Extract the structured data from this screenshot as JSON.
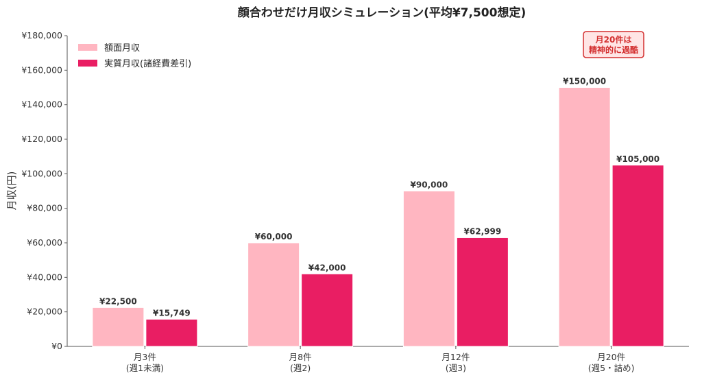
{
  "chart_data": {
    "type": "bar",
    "title": "顔合わせだけ月収シミュレーション(平均¥7,500想定)",
    "ylabel": "月収(円)",
    "xlabel": "",
    "ylim": [
      0,
      180000
    ],
    "yticks": [
      "¥0",
      "¥20,000",
      "¥40,000",
      "¥60,000",
      "¥80,000",
      "¥100,000",
      "¥120,000",
      "¥140,000",
      "¥160,000",
      "¥180,000"
    ],
    "categories": [
      [
        "月3件",
        "(週1未満)"
      ],
      [
        "月8件",
        "(週2)"
      ],
      [
        "月12件",
        "(週3)"
      ],
      [
        "月20件",
        "(週5・詰め)"
      ]
    ],
    "series": [
      {
        "name": "額面月収",
        "values": [
          22500,
          60000,
          90000,
          150000
        ],
        "labels": [
          "¥22,500",
          "¥60,000",
          "¥90,000",
          "¥150,000"
        ],
        "color": "#ffb6c1"
      },
      {
        "name": "実質月収(諸経費差引)",
        "values": [
          15749,
          42000,
          62999,
          105000
        ],
        "labels": [
          "¥15,749",
          "¥42,000",
          "¥62,999",
          "¥105,000"
        ],
        "color": "#e91e63"
      }
    ],
    "legend": "top-left",
    "grid": false,
    "annotation": {
      "lines": [
        "月20件は",
        "精神的に過酷"
      ],
      "color": "#d32f2f",
      "background": "#ffe5e5",
      "position": "top-right"
    }
  }
}
